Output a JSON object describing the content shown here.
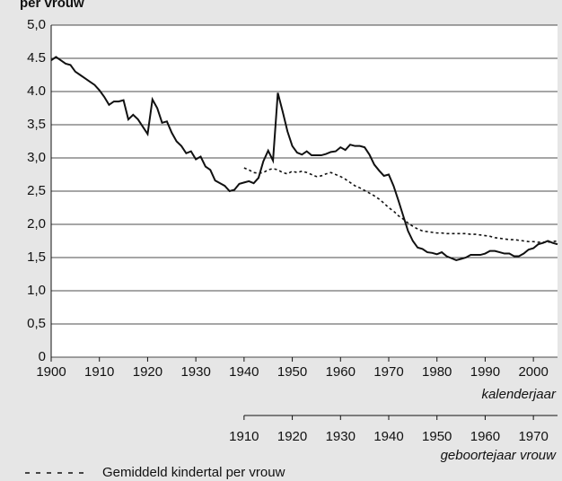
{
  "chart_data": {
    "type": "line",
    "title": "per vrouw",
    "xlabel": "kalenderjaar",
    "x2label": "geboortejaar vrouw",
    "xlim": [
      1900,
      2005
    ],
    "xticks": [
      1900,
      1910,
      1920,
      1930,
      1940,
      1950,
      1960,
      1970,
      1980,
      1990,
      2000
    ],
    "x2lim": [
      1870,
      1975
    ],
    "x2ticks": [
      1910,
      1920,
      1930,
      1940,
      1950,
      1960,
      1970
    ],
    "ylim": [
      0,
      5
    ],
    "yticks": [
      {
        "value": 0,
        "label": "0"
      },
      {
        "value": 0.5,
        "label": "0,5"
      },
      {
        "value": 1,
        "label": "1,0"
      },
      {
        "value": 1.5,
        "label": "1,5"
      },
      {
        "value": 2,
        "label": "2,0"
      },
      {
        "value": 2.5,
        "label": "2,5"
      },
      {
        "value": 3,
        "label": "3,0"
      },
      {
        "value": 3.5,
        "label": "3,5"
      },
      {
        "value": 4,
        "label": "4.0"
      },
      {
        "value": 4.5,
        "label": "4.5"
      },
      {
        "value": 5,
        "label": "5,0"
      }
    ],
    "grid": true,
    "series": [
      {
        "color": "#111111",
        "dash": "solid",
        "axis": "x",
        "x": [
          1900,
          1901,
          1902,
          1903,
          1904,
          1905,
          1906,
          1907,
          1908,
          1909,
          1910,
          1911,
          1912,
          1913,
          1914,
          1915,
          1916,
          1917,
          1918,
          1919,
          1920,
          1921,
          1922,
          1923,
          1924,
          1925,
          1926,
          1927,
          1928,
          1929,
          1930,
          1931,
          1932,
          1933,
          1934,
          1935,
          1936,
          1937,
          1938,
          1939,
          1940,
          1941,
          1942,
          1943,
          1944,
          1945,
          1946,
          1947,
          1948,
          1949,
          1950,
          1951,
          1952,
          1953,
          1954,
          1955,
          1956,
          1957,
          1958,
          1959,
          1960,
          1961,
          1962,
          1963,
          1964,
          1965,
          1966,
          1967,
          1968,
          1969,
          1970,
          1971,
          1972,
          1973,
          1974,
          1975,
          1976,
          1977,
          1978,
          1979,
          1980,
          1981,
          1982,
          1983,
          1984,
          1985,
          1986,
          1987,
          1988,
          1989,
          1990,
          1991,
          1992,
          1993,
          1994,
          1995,
          1996,
          1997,
          1998,
          1999,
          2000,
          2001,
          2002,
          2003,
          2004,
          2005
        ],
        "values": [
          4.47,
          4.52,
          4.47,
          4.42,
          4.4,
          4.3,
          4.25,
          4.2,
          4.15,
          4.1,
          4.02,
          3.92,
          3.8,
          3.85,
          3.85,
          3.87,
          3.58,
          3.65,
          3.58,
          3.47,
          3.36,
          3.88,
          3.75,
          3.53,
          3.55,
          3.38,
          3.25,
          3.18,
          3.07,
          3.1,
          2.98,
          3.02,
          2.87,
          2.82,
          2.66,
          2.62,
          2.58,
          2.5,
          2.52,
          2.61,
          2.63,
          2.65,
          2.62,
          2.7,
          2.95,
          3.11,
          2.96,
          3.98,
          3.7,
          3.4,
          3.18,
          3.08,
          3.05,
          3.1,
          3.04,
          3.04,
          3.04,
          3.06,
          3.09,
          3.1,
          3.16,
          3.12,
          3.2,
          3.18,
          3.18,
          3.16,
          3.05,
          2.9,
          2.81,
          2.73,
          2.75,
          2.58,
          2.36,
          2.13,
          1.9,
          1.75,
          1.65,
          1.63,
          1.58,
          1.57,
          1.55,
          1.58,
          1.52,
          1.49,
          1.46,
          1.48,
          1.5,
          1.54,
          1.54,
          1.54,
          1.56,
          1.6,
          1.6,
          1.58,
          1.56,
          1.56,
          1.52,
          1.52,
          1.56,
          1.62,
          1.64,
          1.7,
          1.72,
          1.75,
          1.72,
          1.7
        ]
      },
      {
        "name": "Gemiddeld kindertal per vrouw",
        "color": "#111111",
        "dash": "dotted",
        "axis": "x2",
        "x": [
          1910,
          1911,
          1912,
          1913,
          1914,
          1915,
          1916,
          1917,
          1918,
          1919,
          1920,
          1921,
          1922,
          1923,
          1924,
          1925,
          1926,
          1927,
          1928,
          1929,
          1930,
          1931,
          1932,
          1933,
          1934,
          1935,
          1936,
          1937,
          1938,
          1939,
          1940,
          1941,
          1942,
          1943,
          1944,
          1945,
          1946,
          1947,
          1948,
          1949,
          1950,
          1951,
          1952,
          1953,
          1954,
          1955,
          1956,
          1957,
          1958,
          1959,
          1960,
          1961,
          1962,
          1963,
          1964,
          1965,
          1966,
          1967,
          1968,
          1969,
          1970,
          1971,
          1972,
          1973,
          1974,
          1975
        ],
        "values": [
          2.85,
          2.82,
          2.78,
          2.77,
          2.78,
          2.82,
          2.84,
          2.82,
          2.78,
          2.76,
          2.8,
          2.78,
          2.8,
          2.78,
          2.75,
          2.72,
          2.73,
          2.76,
          2.78,
          2.75,
          2.72,
          2.68,
          2.63,
          2.58,
          2.55,
          2.51,
          2.47,
          2.43,
          2.38,
          2.32,
          2.25,
          2.2,
          2.13,
          2.08,
          2.02,
          1.97,
          1.93,
          1.9,
          1.89,
          1.88,
          1.87,
          1.87,
          1.86,
          1.86,
          1.86,
          1.86,
          1.86,
          1.85,
          1.85,
          1.84,
          1.83,
          1.82,
          1.8,
          1.79,
          1.78,
          1.77,
          1.77,
          1.76,
          1.75,
          1.74,
          1.74,
          1.73,
          1.73,
          1.73,
          1.74,
          1.75
        ]
      }
    ]
  }
}
